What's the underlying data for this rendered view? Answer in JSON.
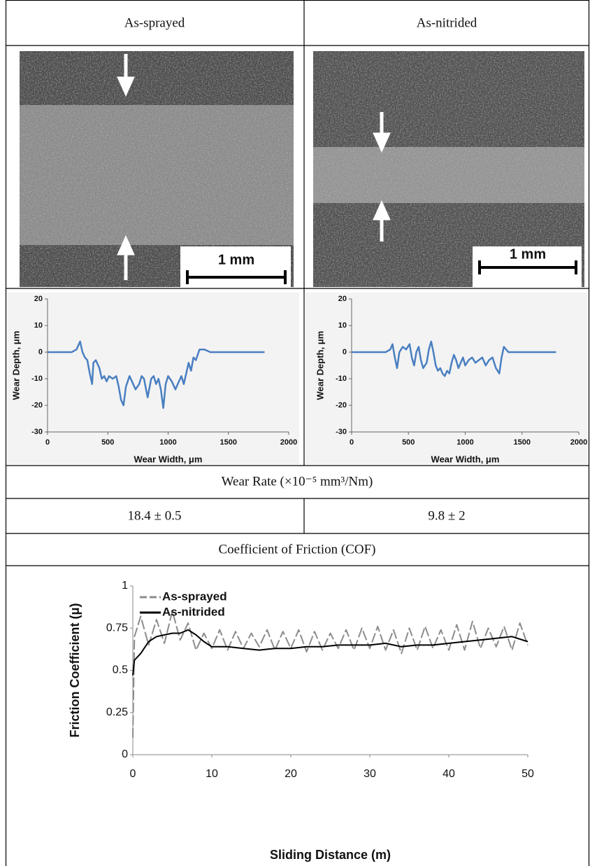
{
  "table": {
    "header": [
      "As-sprayed",
      "As-nitrided"
    ],
    "images": [
      {
        "scale_bar": "1 mm"
      },
      {
        "scale_bar": "1 mm"
      }
    ],
    "wear_rate": {
      "label": "Wear Rate (×10⁻⁵ mm³/Nm)",
      "values": [
        "18.4 ± 0.5",
        "9.8 ± 2"
      ]
    },
    "cof_label": "Coefficient of Friction (COF)"
  },
  "chart_data": [
    {
      "type": "line",
      "xlabel": "Wear Width, μm",
      "ylabel": "Wear Depth, μm",
      "color": "#4a7fc1",
      "xlim": [
        0,
        2000
      ],
      "ylim": [
        -30,
        20
      ],
      "xticks": [
        0,
        500,
        1000,
        1500,
        2000
      ],
      "yticks": [
        -30,
        -20,
        -10,
        0,
        10,
        20
      ],
      "x": [
        0,
        100,
        200,
        240,
        270,
        290,
        310,
        330,
        350,
        370,
        380,
        400,
        430,
        450,
        470,
        490,
        510,
        540,
        570,
        590,
        610,
        630,
        650,
        680,
        700,
        730,
        760,
        780,
        800,
        830,
        860,
        880,
        900,
        920,
        940,
        960,
        980,
        1000,
        1030,
        1060,
        1090,
        1110,
        1130,
        1150,
        1170,
        1190,
        1210,
        1230,
        1260,
        1300,
        1350,
        1400,
        1500,
        1600,
        1700,
        1800
      ],
      "values": [
        0,
        0,
        0,
        1,
        4,
        0,
        -2,
        -3,
        -8,
        -12,
        -4,
        -3,
        -6,
        -10,
        -9,
        -11,
        -9,
        -10,
        -9,
        -13,
        -18,
        -20,
        -13,
        -9,
        -11,
        -14,
        -12,
        -9,
        -10,
        -17,
        -10,
        -9,
        -12,
        -10,
        -14,
        -21,
        -12,
        -9,
        -11,
        -14,
        -11,
        -9,
        -12,
        -8,
        -4,
        -7,
        -2,
        -3,
        1,
        1,
        0,
        0,
        0,
        0,
        0,
        0
      ]
    },
    {
      "type": "line",
      "xlabel": "Wear Width, μm",
      "ylabel": "Wear Depth, μm",
      "color": "#4a7fc1",
      "xlim": [
        0,
        2000
      ],
      "ylim": [
        -30,
        20
      ],
      "xticks": [
        0,
        500,
        1000,
        1500,
        2000
      ],
      "yticks": [
        -30,
        -20,
        -10,
        0,
        10,
        20
      ],
      "x": [
        0,
        200,
        300,
        340,
        360,
        380,
        400,
        420,
        450,
        480,
        510,
        530,
        550,
        570,
        590,
        610,
        630,
        660,
        680,
        700,
        720,
        740,
        760,
        780,
        800,
        820,
        840,
        860,
        880,
        900,
        920,
        940,
        960,
        980,
        1000,
        1030,
        1060,
        1090,
        1120,
        1150,
        1180,
        1210,
        1240,
        1270,
        1300,
        1320,
        1340,
        1380,
        1500,
        1600,
        1800
      ],
      "values": [
        0,
        0,
        0,
        1,
        3,
        -2,
        -6,
        0,
        2,
        1,
        3,
        -2,
        -5,
        0,
        2,
        -3,
        -6,
        -4,
        1,
        4,
        0,
        -5,
        -7,
        -6,
        -8,
        -9,
        -7,
        -8,
        -4,
        -1,
        -3,
        -6,
        -4,
        -2,
        -5,
        -3,
        -2,
        -4,
        -3,
        -2,
        -5,
        -3,
        -2,
        -6,
        -8,
        -2,
        2,
        0,
        0,
        0,
        0
      ]
    },
    {
      "type": "line",
      "xlabel": "Sliding Distance (m)",
      "ylabel": "Friction Coefficient (μ)",
      "xlim": [
        0,
        50
      ],
      "ylim": [
        0,
        1
      ],
      "xticks": [
        0,
        10,
        20,
        30,
        40,
        50
      ],
      "yticks": [
        0,
        0.25,
        0.5,
        0.75,
        1
      ],
      "series": [
        {
          "name": "As-sprayed",
          "color": "#8c8c8c",
          "dashed": true,
          "x": [
            0,
            0.2,
            1,
            2,
            3,
            4,
            5,
            6,
            7,
            8,
            9,
            10,
            11,
            12,
            13,
            14,
            15,
            16,
            17,
            18,
            19,
            20,
            21,
            22,
            23,
            24,
            25,
            26,
            27,
            28,
            29,
            30,
            31,
            32,
            33,
            34,
            35,
            36,
            37,
            38,
            39,
            40,
            41,
            42,
            43,
            44,
            45,
            46,
            47,
            48,
            49,
            50
          ],
          "values": [
            0.1,
            0.7,
            0.82,
            0.65,
            0.8,
            0.66,
            0.85,
            0.68,
            0.78,
            0.62,
            0.72,
            0.63,
            0.74,
            0.62,
            0.73,
            0.63,
            0.72,
            0.64,
            0.74,
            0.62,
            0.73,
            0.63,
            0.74,
            0.61,
            0.73,
            0.62,
            0.72,
            0.63,
            0.74,
            0.62,
            0.75,
            0.63,
            0.76,
            0.62,
            0.74,
            0.6,
            0.75,
            0.62,
            0.76,
            0.63,
            0.74,
            0.62,
            0.77,
            0.62,
            0.79,
            0.63,
            0.75,
            0.64,
            0.76,
            0.62,
            0.78,
            0.65
          ]
        },
        {
          "name": "As-nitrided",
          "color": "#000000",
          "dashed": false,
          "x": [
            0,
            0.2,
            1,
            2,
            3,
            4,
            5,
            6,
            7,
            8,
            9,
            10,
            12,
            14,
            16,
            18,
            20,
            22,
            24,
            26,
            28,
            30,
            32,
            34,
            36,
            38,
            40,
            42,
            44,
            46,
            48,
            50
          ],
          "values": [
            0.47,
            0.56,
            0.6,
            0.67,
            0.7,
            0.71,
            0.72,
            0.72,
            0.74,
            0.71,
            0.67,
            0.64,
            0.64,
            0.63,
            0.62,
            0.63,
            0.63,
            0.64,
            0.64,
            0.65,
            0.65,
            0.65,
            0.66,
            0.64,
            0.65,
            0.65,
            0.66,
            0.67,
            0.68,
            0.69,
            0.7,
            0.67
          ]
        }
      ]
    }
  ]
}
